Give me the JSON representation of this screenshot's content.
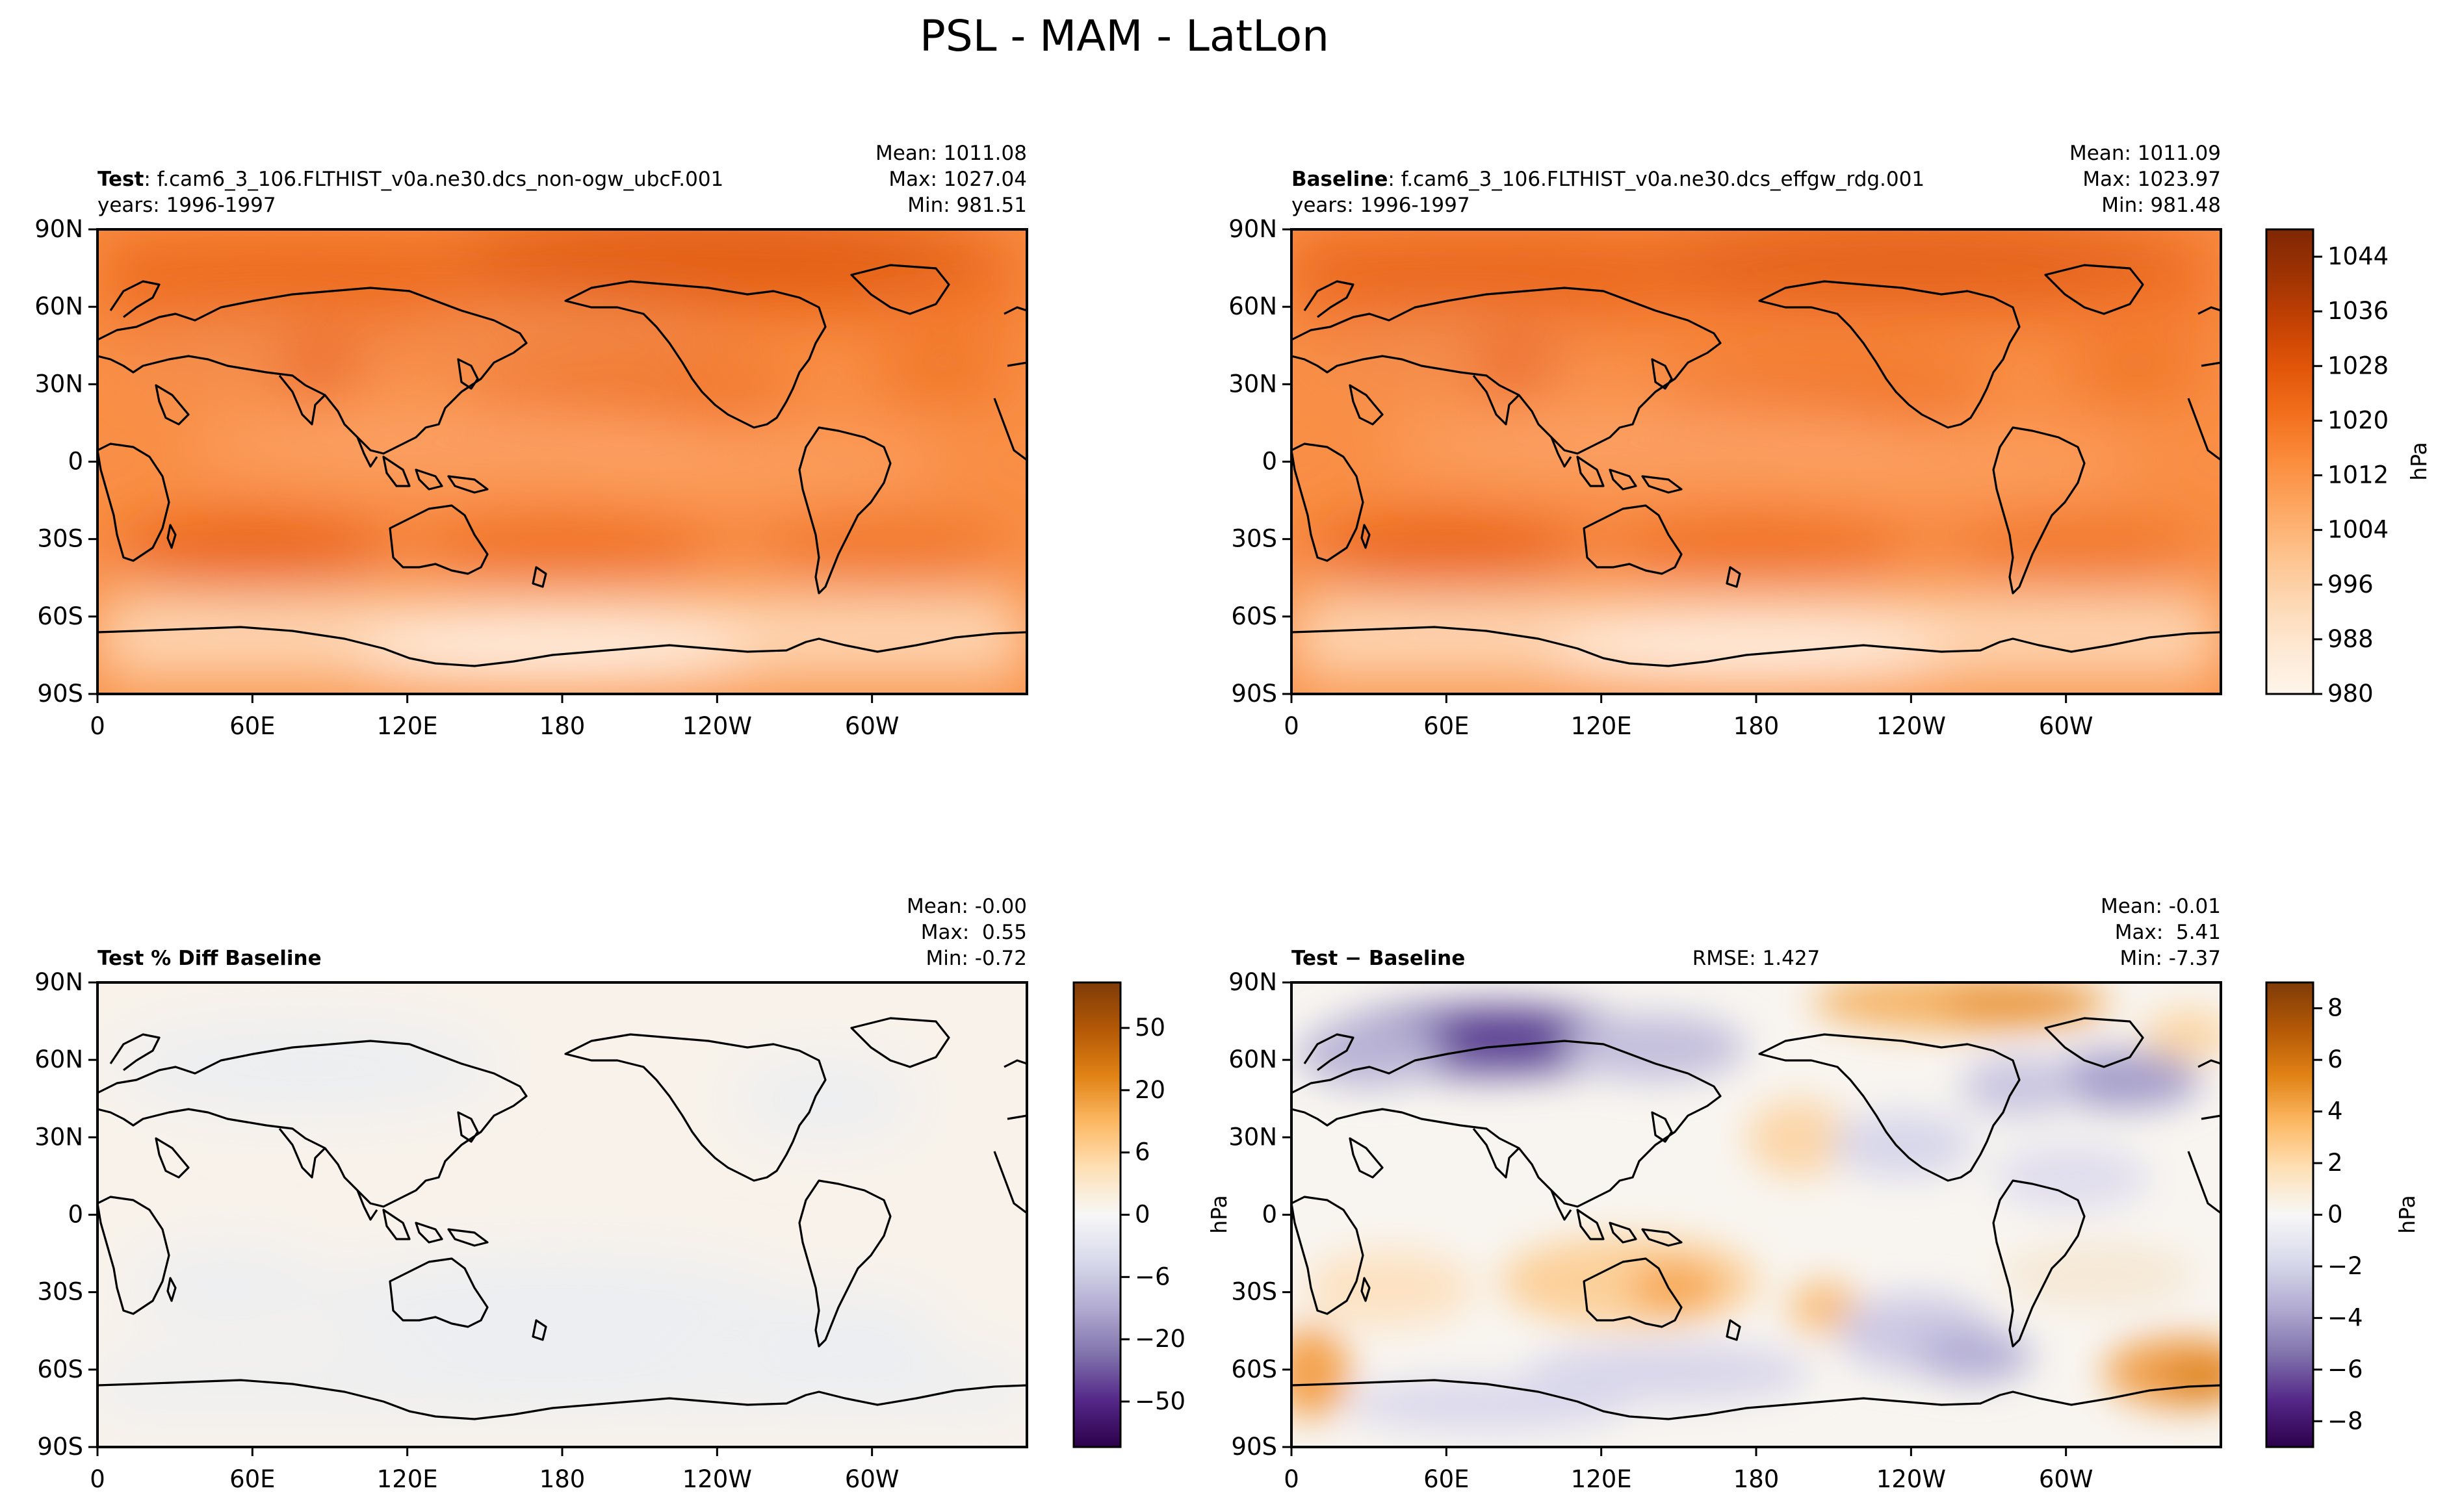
{
  "figure": {
    "title": "PSL - MAM - LatLon"
  },
  "colors": {
    "orange_ramp": [
      "#fff5eb",
      "#fee8d3",
      "#fdd8b3",
      "#fdc28c",
      "#fda762",
      "#fb8d3d",
      "#f2701d",
      "#e25609",
      "#c44103",
      "#9f3303",
      "#7f2704"
    ],
    "diff_ramp": [
      "#2d004b",
      "#542788",
      "#8073ac",
      "#b2abd2",
      "#d8daeb",
      "#f7f7f7",
      "#fee0b6",
      "#fdb863",
      "#e08214",
      "#b35806",
      "#7f3b08"
    ],
    "land_outline": "#000000"
  },
  "chart_data": [
    {
      "id": "test",
      "type": "heatmap",
      "title_bold": "Test",
      "title_rest": ": f.cam6_3_106.FLTHIST_v0a.ne30.dcs_non-ogw_ubcF.001",
      "years": "years: 1996-1997",
      "stats": [
        "Mean: 1011.08",
        "Max: 1027.04",
        "Min: 981.51"
      ],
      "xticks": [
        "0",
        "60E",
        "120E",
        "180",
        "120W",
        "60W"
      ],
      "yticks": [
        "90N",
        "60N",
        "30N",
        "0",
        "30S",
        "60S",
        "90S"
      ],
      "field": "PSL",
      "units": "hPa",
      "vmin": 980,
      "vmax": 1048
    },
    {
      "id": "baseline",
      "type": "heatmap",
      "title_bold": "Baseline",
      "title_rest": ": f.cam6_3_106.FLTHIST_v0a.ne30.dcs_effgw_rdg.001",
      "years": "years: 1996-1997",
      "stats": [
        "Mean: 1011.09",
        "Max: 1023.97",
        "Min: 981.48"
      ],
      "xticks": [
        "0",
        "60E",
        "120E",
        "180",
        "120W",
        "60W"
      ],
      "yticks": [
        "90N",
        "60N",
        "30N",
        "0",
        "30S",
        "60S",
        "90S"
      ],
      "field": "PSL",
      "units": "hPa",
      "vmin": 980,
      "vmax": 1048,
      "colorbar": {
        "label": "hPa",
        "ticks": [
          "1044",
          "1036",
          "1028",
          "1020",
          "1012",
          "1004",
          "996",
          "988",
          "980"
        ],
        "tick_values": [
          1044,
          1036,
          1028,
          1020,
          1012,
          1004,
          996,
          988,
          980
        ],
        "range": [
          980,
          1048
        ]
      }
    },
    {
      "id": "pctdiff",
      "type": "heatmap",
      "title_bold": "Test % Diff Baseline",
      "stats": [
        "Mean: -0.00",
        "Max:  0.55",
        "Min: -0.72"
      ],
      "xticks": [
        "0",
        "60E",
        "120E",
        "180",
        "120W",
        "60W"
      ],
      "yticks": [
        "90N",
        "60N",
        "30N",
        "0",
        "30S",
        "60S",
        "90S"
      ],
      "colorbar": {
        "label": "hPa",
        "ticks": [
          "50",
          "20",
          "6",
          "0",
          "−6",
          "−20",
          "−50"
        ]
      }
    },
    {
      "id": "diff",
      "type": "heatmap",
      "title_bold": "Test − Baseline",
      "rmse": "RMSE: 1.427",
      "stats": [
        "Mean: -0.01",
        "Max:  5.41",
        "Min: -7.37"
      ],
      "xticks": [
        "0",
        "60E",
        "120E",
        "180",
        "120W",
        "60W"
      ],
      "yticks": [
        "90N",
        "60N",
        "30N",
        "0",
        "30S",
        "60S",
        "90S"
      ],
      "vmin": -9,
      "vmax": 9,
      "colorbar": {
        "label": "hPa",
        "ticks": [
          "8",
          "6",
          "4",
          "2",
          "0",
          "−2",
          "−4",
          "−6",
          "−8"
        ],
        "tick_values": [
          8,
          6,
          4,
          2,
          0,
          -2,
          -4,
          -6,
          -8
        ],
        "range": [
          -9,
          9
        ]
      }
    }
  ]
}
